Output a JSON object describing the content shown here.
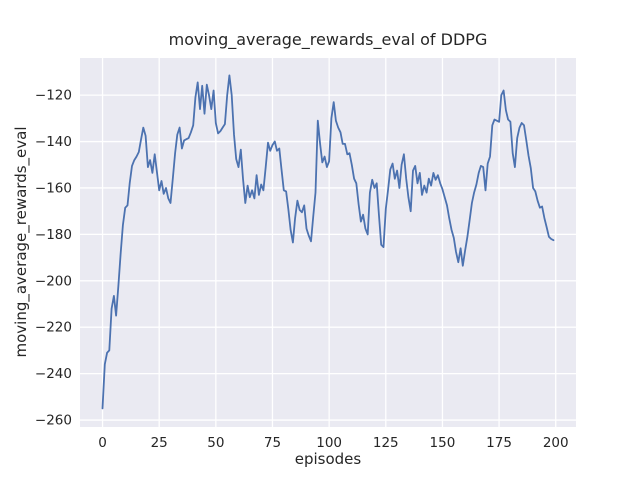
{
  "chart_data": {
    "type": "line",
    "title": "moving_average_rewards_eval of DDPG",
    "xlabel": "episodes",
    "ylabel": "moving_average_rewards_eval",
    "x_ticks": [
      0,
      25,
      50,
      75,
      100,
      125,
      150,
      175,
      200
    ],
    "y_ticks": [
      -120,
      -140,
      -160,
      -180,
      -200,
      -220,
      -240,
      -260
    ],
    "xlim": [
      -9.95,
      208.95
    ],
    "ylim": [
      -263,
      -104
    ],
    "grid": true,
    "legend": false,
    "style": {
      "plot_bg": "#eaeaf2",
      "grid_color": "#ffffff",
      "line_color": "#4c72b0",
      "text_color": "#262626",
      "figure_bg": "#ffffff"
    },
    "series": [
      {
        "name": "moving_average_rewards_eval",
        "x": {
          "start": 0,
          "step": 1,
          "count": 200
        },
        "values": [
          -255,
          -236,
          -231,
          -230,
          -212,
          -206.5,
          -215,
          -202,
          -188,
          -176,
          -168.5,
          -167.5,
          -158,
          -150.5,
          -148,
          -146.5,
          -144.5,
          -139,
          -134,
          -137.5,
          -151,
          -148,
          -153.5,
          -145.5,
          -153,
          -161,
          -157,
          -162.5,
          -160,
          -164.5,
          -166.5,
          -156,
          -145,
          -137,
          -134,
          -143,
          -139.5,
          -139,
          -138.5,
          -136,
          -133,
          -121,
          -114.5,
          -126,
          -116,
          -128,
          -115.5,
          -120,
          -126,
          -118,
          -132,
          -136.5,
          -135.5,
          -134,
          -132.5,
          -120,
          -111.5,
          -120,
          -137,
          -147.5,
          -151,
          -143.5,
          -156,
          -166.5,
          -159,
          -164,
          -161,
          -164.5,
          -154.5,
          -163,
          -158.5,
          -161,
          -151,
          -140.5,
          -144,
          -141.5,
          -140,
          -144,
          -143,
          -152,
          -161,
          -161.5,
          -169,
          -178,
          -183.5,
          -173,
          -165.5,
          -169.5,
          -170.5,
          -167.5,
          -177.5,
          -180.5,
          -183,
          -172,
          -162,
          -131,
          -141,
          -149,
          -146.5,
          -151,
          -148.5,
          -130,
          -123,
          -131,
          -134,
          -136,
          -141,
          -141,
          -145.5,
          -145,
          -150,
          -156,
          -158,
          -167,
          -174.5,
          -171.5,
          -177.5,
          -180,
          -162,
          -156.5,
          -160,
          -158,
          -172,
          -184.5,
          -185.5,
          -169,
          -161,
          -152,
          -149.5,
          -156,
          -152.5,
          -160,
          -150,
          -145.5,
          -156,
          -164,
          -170,
          -152.5,
          -150.5,
          -158,
          -153.5,
          -163,
          -159,
          -162,
          -156,
          -159,
          -153.5,
          -156.5,
          -154.5,
          -158,
          -160.5,
          -164,
          -167.5,
          -173,
          -178,
          -181.5,
          -187.5,
          -192,
          -186,
          -193.5,
          -187,
          -181,
          -174,
          -166.5,
          -162,
          -158.5,
          -153.5,
          -150.5,
          -151,
          -161,
          -149.5,
          -146.5,
          -133,
          -130.5,
          -131,
          -131.5,
          -120,
          -118,
          -126.5,
          -130.5,
          -131.5,
          -145,
          -151,
          -138.5,
          -134,
          -132,
          -133,
          -139.5,
          -146,
          -151.5,
          -160,
          -161.5,
          -165.5,
          -168.5,
          -168,
          -173,
          -177,
          -181,
          -182,
          -182.5
        ]
      }
    ]
  }
}
